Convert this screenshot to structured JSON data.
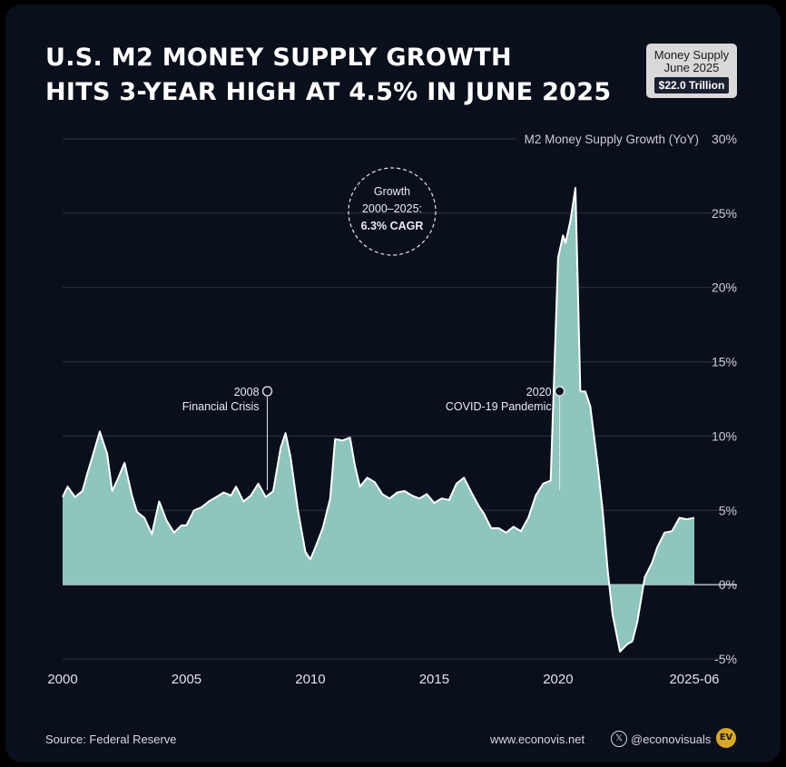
{
  "title": {
    "line1": "U.S. M2 MONEY SUPPLY GROWTH",
    "line2": "HITS 3-YEAR HIGH AT 4.5% IN JUNE 2025"
  },
  "badge": {
    "line1": "Money Supply",
    "line2": "June 2025",
    "value": "$22.0 Trillion"
  },
  "callout": {
    "line1": "Growth",
    "line2": "2000–2025:",
    "line3": "6.3% CAGR"
  },
  "annotations": [
    {
      "year_label": "2008",
      "text": "Financial Crisis",
      "x": 2008.3
    },
    {
      "year_label": "2020",
      "text": "COVID-19 Pandemic",
      "x": 2020.1
    }
  ],
  "footer": {
    "source": "Source: Federal Reserve",
    "website": "www.econovis.net",
    "handle": "@econovisuals",
    "logo": "EV"
  },
  "colors": {
    "background": "#0a0f1c",
    "area_fill": "#8ec5bd",
    "line": "#ffffff",
    "callout_accent": "#e02424",
    "grid": "#2c3344"
  },
  "chart_data": {
    "type": "area",
    "ylabel": "M2 Money Supply Growth (YoY)",
    "xlim": [
      2000,
      2025.5
    ],
    "ylim": [
      -5,
      30
    ],
    "yticks": [
      30,
      25,
      20,
      15,
      10,
      5,
      0,
      -5
    ],
    "ytick_labels": [
      "30%",
      "25%",
      "20%",
      "15%",
      "10%",
      "5%",
      "0%",
      "-5%"
    ],
    "xticks": [
      2000,
      2005,
      2010,
      2015,
      2020,
      2025.5
    ],
    "xtick_labels": [
      "2000",
      "2005",
      "2010",
      "2015",
      "2020",
      "2025-06"
    ],
    "grid": true,
    "series": [
      {
        "x": [
          2000.0,
          2000.2,
          2000.5,
          2000.8,
          2001.0,
          2001.2,
          2001.5,
          2001.8,
          2002.0,
          2002.2,
          2002.5,
          2002.8,
          2003.0,
          2003.3,
          2003.6,
          2003.9,
          2004.2,
          2004.5,
          2004.8,
          2005.0,
          2005.3,
          2005.6,
          2005.9,
          2006.2,
          2006.5,
          2006.8,
          2007.0,
          2007.3,
          2007.6,
          2007.9,
          2008.2,
          2008.5,
          2008.8,
          2009.0,
          2009.2,
          2009.5,
          2009.8,
          2010.0,
          2010.2,
          2010.5,
          2010.8,
          2011.0,
          2011.3,
          2011.6,
          2011.8,
          2012.0,
          2012.3,
          2012.6,
          2012.9,
          2013.2,
          2013.5,
          2013.8,
          2014.1,
          2014.4,
          2014.7,
          2015.0,
          2015.3,
          2015.6,
          2015.9,
          2016.2,
          2016.5,
          2016.8,
          2017.0,
          2017.3,
          2017.6,
          2017.9,
          2018.2,
          2018.5,
          2018.8,
          2019.1,
          2019.4,
          2019.7,
          2020.0,
          2020.2,
          2020.3,
          2020.5,
          2020.7,
          2020.9,
          2021.1,
          2021.3,
          2021.6,
          2021.8,
          2022.0,
          2022.2,
          2022.5,
          2022.8,
          2023.0,
          2023.2,
          2023.5,
          2023.8,
          2024.0,
          2024.3,
          2024.6,
          2024.9,
          2025.2,
          2025.5
        ],
        "y": [
          5.9,
          6.6,
          5.9,
          6.3,
          7.5,
          8.6,
          10.3,
          8.8,
          6.3,
          7.0,
          8.2,
          6.0,
          4.9,
          4.5,
          3.4,
          5.6,
          4.3,
          3.5,
          4.0,
          4.0,
          5.0,
          5.2,
          5.6,
          5.9,
          6.2,
          6.0,
          6.6,
          5.6,
          6.0,
          6.8,
          5.9,
          6.3,
          9.2,
          10.2,
          8.6,
          5.0,
          2.2,
          1.7,
          2.5,
          3.8,
          5.8,
          9.8,
          9.7,
          9.9,
          8.0,
          6.6,
          7.2,
          6.9,
          6.1,
          5.8,
          6.2,
          6.3,
          6.0,
          5.8,
          6.1,
          5.5,
          5.8,
          5.7,
          6.8,
          7.2,
          6.2,
          5.3,
          4.8,
          3.8,
          3.8,
          3.5,
          3.9,
          3.6,
          4.5,
          6.0,
          6.8,
          7.0,
          22.0,
          23.5,
          23.0,
          24.5,
          26.7,
          13.0,
          13.0,
          12.0,
          8.0,
          5.0,
          1.0,
          -2.0,
          -4.5,
          -4.0,
          -3.8,
          -2.5,
          0.5,
          1.5,
          2.5,
          3.5,
          3.6,
          4.5,
          4.4,
          4.5
        ]
      }
    ]
  }
}
